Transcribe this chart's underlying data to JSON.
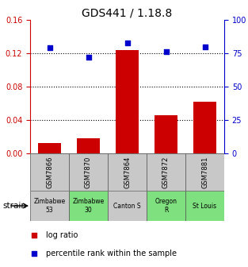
{
  "title": "GDS441 / 1.18.8",
  "samples": [
    "GSM7866",
    "GSM7870",
    "GSM7864",
    "GSM7872",
    "GSM7881"
  ],
  "strains": [
    "Zimbabwe\n53",
    "Zimbabwe\n30",
    "Canton S",
    "Oregon\nR",
    "St Louis"
  ],
  "strain_colors": [
    "#c8c8c8",
    "#7fe07f",
    "#c8c8c8",
    "#7fe07f",
    "#7fe07f"
  ],
  "log_ratios": [
    0.012,
    0.018,
    0.124,
    0.046,
    0.062
  ],
  "percentile_ranks": [
    79,
    72,
    83,
    76,
    80
  ],
  "bar_color": "#cc0000",
  "dot_color": "#0000cc",
  "ylim_left": [
    0,
    0.16
  ],
  "ylim_right": [
    0,
    100
  ],
  "yticks_left": [
    0,
    0.04,
    0.08,
    0.12,
    0.16
  ],
  "yticks_right": [
    0,
    25,
    50,
    75,
    100
  ],
  "left_tick_color": "#cc0000",
  "right_tick_color": "#0000cc",
  "background_color": "#ffffff",
  "legend_log_ratio": "log ratio",
  "legend_percentile": "percentile rank within the sample",
  "dotted_lines": [
    0.04,
    0.08,
    0.12
  ]
}
